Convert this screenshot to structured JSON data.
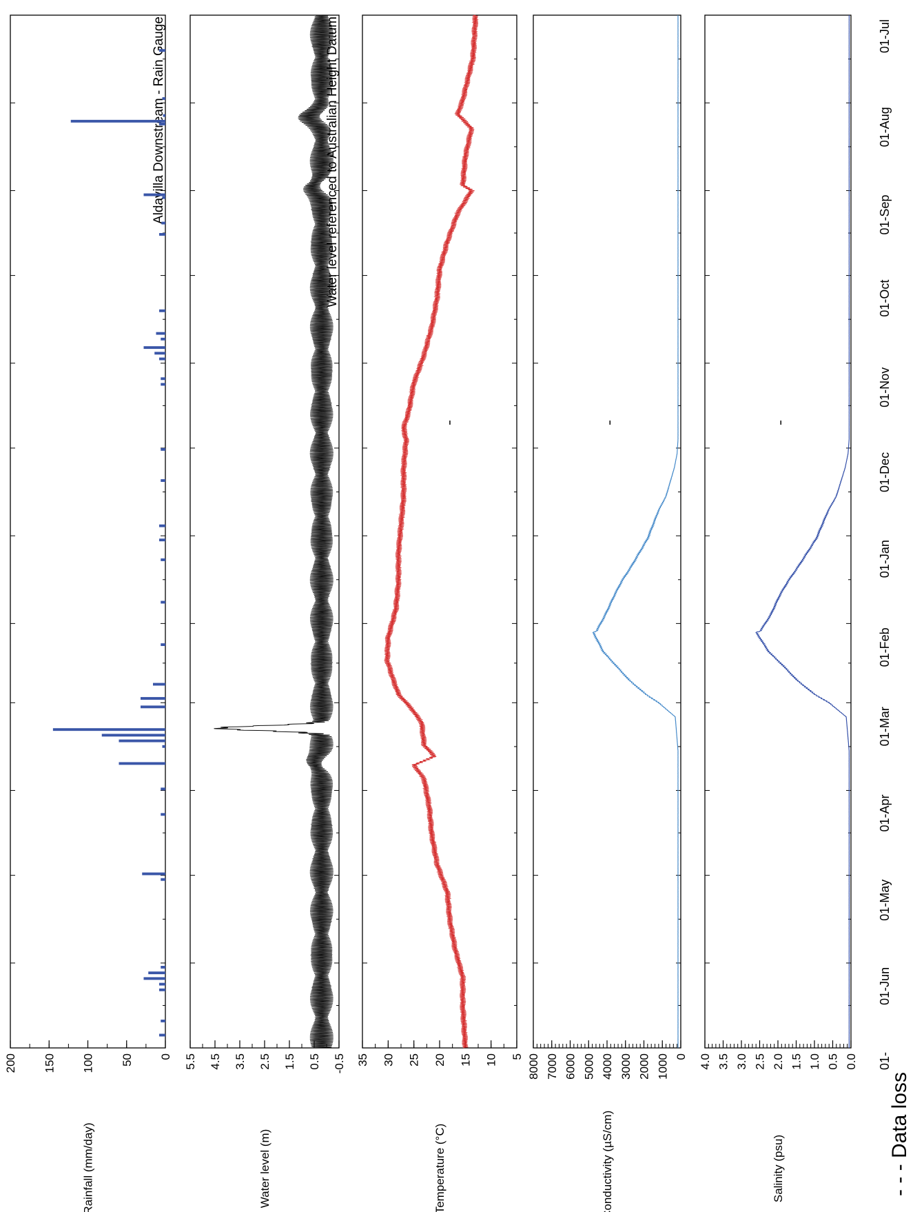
{
  "figure": {
    "legend_text": "- - - Data loss",
    "colors": {
      "rainfall": "#3a56a8",
      "water_level": "#111111",
      "temperature": "#d42a2a",
      "conductivity": "#3f86c8",
      "salinity": "#2d4aa6",
      "title_text": "#3a56a8"
    }
  },
  "chart_data": [
    {
      "type": "bar",
      "ylabel": "Rainfall (mm/day)",
      "ylim": [
        0,
        200
      ],
      "yticks": [
        "0",
        "50",
        "100",
        "150",
        "200"
      ],
      "annotation": "Aldavilla Downstream - Rain Gauge",
      "bars": [
        {
          "day": 12,
          "value": 8
        },
        {
          "day": 29,
          "value": 4
        },
        {
          "day": 35,
          "value": 3
        },
        {
          "day": 37,
          "value": 122
        },
        {
          "day": 38,
          "value": 8
        },
        {
          "day": 63,
          "value": 28
        },
        {
          "day": 64,
          "value": 4
        },
        {
          "day": 73,
          "value": 5
        },
        {
          "day": 77,
          "value": 8
        },
        {
          "day": 104,
          "value": 8
        },
        {
          "day": 112,
          "value": 12
        },
        {
          "day": 114,
          "value": 6
        },
        {
          "day": 117,
          "value": 28
        },
        {
          "day": 119,
          "value": 14
        },
        {
          "day": 121,
          "value": 8
        },
        {
          "day": 128,
          "value": 6
        },
        {
          "day": 130,
          "value": 6
        },
        {
          "day": 153,
          "value": 6
        },
        {
          "day": 164,
          "value": 6
        },
        {
          "day": 180,
          "value": 8
        },
        {
          "day": 185,
          "value": 8
        },
        {
          "day": 192,
          "value": 6
        },
        {
          "day": 207,
          "value": 6
        },
        {
          "day": 222,
          "value": 6
        },
        {
          "day": 236,
          "value": 16
        },
        {
          "day": 241,
          "value": 32
        },
        {
          "day": 244,
          "value": 32
        },
        {
          "day": 252,
          "value": 145
        },
        {
          "day": 254,
          "value": 82
        },
        {
          "day": 256,
          "value": 60
        },
        {
          "day": 258,
          "value": 4
        },
        {
          "day": 264,
          "value": 60
        },
        {
          "day": 273,
          "value": 6
        },
        {
          "day": 282,
          "value": 6
        },
        {
          "day": 303,
          "value": 30
        },
        {
          "day": 305,
          "value": 6
        },
        {
          "day": 336,
          "value": 6
        },
        {
          "day": 338,
          "value": 22
        },
        {
          "day": 340,
          "value": 28
        },
        {
          "day": 342,
          "value": 8
        },
        {
          "day": 344,
          "value": 8
        },
        {
          "day": 355,
          "value": 6
        },
        {
          "day": 360,
          "value": 8
        }
      ]
    },
    {
      "type": "line",
      "ylabel": "Water level (m)",
      "ylim": [
        -0.5,
        5.5
      ],
      "yticks": [
        "-0.5",
        "0.5",
        "1.5",
        "2.5",
        "3.5",
        "4.5",
        "5.5"
      ],
      "annotation": "Water level referenced to Australian Height Datum",
      "signal": {
        "mean": 0.2,
        "tidal_range": 0.95,
        "features": [
          {
            "day": 36,
            "value": 1.05
          },
          {
            "day": 61,
            "value": 0.85
          },
          {
            "day": 252,
            "value": 4.3
          },
          {
            "day": 264,
            "value": 0.7
          }
        ]
      }
    },
    {
      "type": "line",
      "ylabel": "Temperature (°C)",
      "ylim": [
        5,
        35
      ],
      "yticks": [
        "5",
        "10",
        "15",
        "20",
        "25",
        "30",
        "35"
      ],
      "series": {
        "x": [
          0,
          15,
          30,
          35,
          40,
          50,
          60,
          62,
          70,
          80,
          90,
          100,
          110,
          120,
          130,
          140,
          146,
          150,
          160,
          170,
          180,
          190,
          200,
          210,
          220,
          228,
          235,
          240,
          245,
          250,
          258,
          262,
          265,
          270,
          280,
          290,
          300,
          310,
          320,
          330,
          340,
          350,
          365
        ],
        "y": [
          13,
          13.5,
          15.5,
          16.5,
          13.8,
          15,
          15.5,
          13.8,
          16.5,
          18.5,
          20,
          20.5,
          21.5,
          23,
          25,
          26,
          27,
          26.5,
          27,
          27,
          27.5,
          28,
          28,
          28.5,
          30,
          30.2,
          29,
          28,
          25.5,
          23.5,
          23,
          21,
          25,
          23,
          22,
          21.5,
          20.5,
          18.5,
          18,
          17,
          15.5,
          15.5,
          15
        ]
      },
      "data_loss_day": 144
    },
    {
      "type": "line",
      "ylabel": "SConductivity (µS/cm)",
      "ylim": [
        0,
        8000
      ],
      "yticks": [
        "0",
        "1000",
        "2000",
        "3000",
        "4000",
        "5000",
        "6000",
        "7000",
        "8000"
      ],
      "series": {
        "x": [
          0,
          30,
          60,
          90,
          120,
          150,
          155,
          160,
          170,
          175,
          185,
          195,
          200,
          205,
          212,
          218,
          215,
          225,
          230,
          235,
          240,
          243,
          248,
          260,
          300,
          340,
          365
        ],
        "y": [
          150,
          150,
          150,
          150,
          150,
          150,
          200,
          350,
          800,
          1200,
          1800,
          2700,
          3200,
          3600,
          4100,
          4600,
          5000,
          4200,
          3500,
          2800,
          1900,
          1200,
          300,
          150,
          150,
          150,
          150
        ]
      },
      "data_loss_day": 144
    },
    {
      "type": "line",
      "ylabel": "Salinity (psu)",
      "ylim": [
        0,
        4.0
      ],
      "yticks": [
        "0.0",
        "0.5",
        "1.0",
        "1.5",
        "2.0",
        "2.5",
        "3.0",
        "3.5",
        "4.0"
      ],
      "series": {
        "x": [
          0,
          30,
          60,
          90,
          120,
          150,
          155,
          160,
          170,
          175,
          185,
          195,
          200,
          205,
          212,
          218,
          215,
          225,
          230,
          235,
          240,
          243,
          248,
          260,
          300,
          340,
          365
        ],
        "y": [
          0.05,
          0.05,
          0.05,
          0.05,
          0.05,
          0.05,
          0.08,
          0.16,
          0.4,
          0.62,
          0.95,
          1.45,
          1.72,
          1.95,
          2.2,
          2.5,
          2.75,
          2.25,
          1.85,
          1.48,
          1.0,
          0.6,
          0.13,
          0.05,
          0.05,
          0.05,
          0.05
        ]
      },
      "data_loss_day": 144
    }
  ],
  "x_axis": {
    "months": [
      "01-Jul",
      "01-Aug",
      "01-Sep",
      "01-Oct",
      "01-Nov",
      "01-Dec",
      "01-Jan",
      "01-Feb",
      "01-Mar",
      "01-Apr",
      "01-May",
      "01-Jun",
      "01-Jul"
    ],
    "month_days": [
      0,
      31,
      62,
      92,
      123,
      153,
      184,
      215,
      243,
      274,
      304,
      335,
      365
    ],
    "last_label_visible": "01-"
  }
}
